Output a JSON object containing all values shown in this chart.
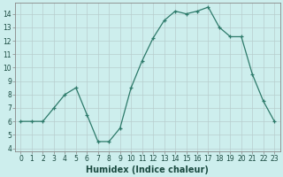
{
  "x": [
    0,
    1,
    2,
    3,
    4,
    5,
    6,
    7,
    8,
    9,
    10,
    11,
    12,
    13,
    14,
    15,
    16,
    17,
    18,
    19,
    20,
    21,
    22,
    23
  ],
  "y": [
    6.0,
    6.0,
    6.0,
    7.0,
    8.0,
    8.5,
    6.5,
    4.5,
    4.5,
    5.5,
    8.5,
    10.5,
    12.2,
    13.5,
    14.2,
    14.0,
    14.2,
    14.5,
    13.0,
    12.3,
    12.3,
    9.5,
    7.5,
    6.0
  ],
  "line_color": "#2d7a6a",
  "marker": "+",
  "markersize": 3.5,
  "linewidth": 0.9,
  "bg_color": "#cdeeed",
  "grid_color": "#b8cece",
  "xlabel": "Humidex (Indice chaleur)",
  "xlim": [
    -0.5,
    23.5
  ],
  "ylim": [
    3.8,
    14.8
  ],
  "yticks": [
    4,
    5,
    6,
    7,
    8,
    9,
    10,
    11,
    12,
    13,
    14
  ],
  "xticks": [
    0,
    1,
    2,
    3,
    4,
    5,
    6,
    7,
    8,
    9,
    10,
    11,
    12,
    13,
    14,
    15,
    16,
    17,
    18,
    19,
    20,
    21,
    22,
    23
  ],
  "tick_label_fontsize": 5.5,
  "xlabel_fontsize": 7.0,
  "spine_color": "#888888",
  "tick_color": "#1a4a40",
  "label_color": "#1a4a40"
}
